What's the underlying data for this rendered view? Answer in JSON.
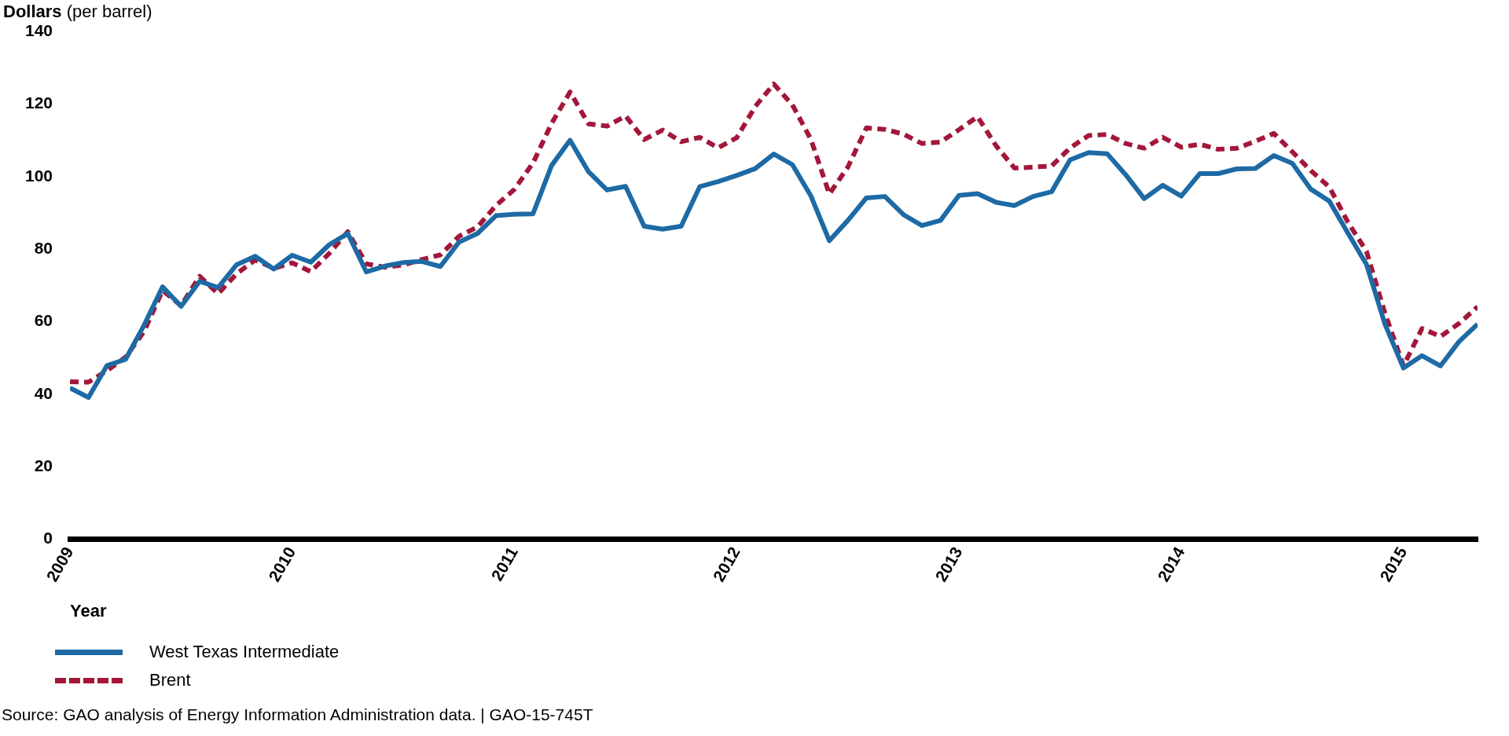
{
  "chart_data": {
    "type": "line",
    "ylabel": "Dollars (per barrel)",
    "xlabel": "Year",
    "x": [
      "2009-01",
      "2009-02",
      "2009-03",
      "2009-04",
      "2009-05",
      "2009-06",
      "2009-07",
      "2009-08",
      "2009-09",
      "2009-10",
      "2009-11",
      "2009-12",
      "2010-01",
      "2010-02",
      "2010-03",
      "2010-04",
      "2010-05",
      "2010-06",
      "2010-07",
      "2010-08",
      "2010-09",
      "2010-10",
      "2010-11",
      "2010-12",
      "2011-01",
      "2011-02",
      "2011-03",
      "2011-04",
      "2011-05",
      "2011-06",
      "2011-07",
      "2011-08",
      "2011-09",
      "2011-10",
      "2011-11",
      "2011-12",
      "2012-01",
      "2012-02",
      "2012-03",
      "2012-04",
      "2012-05",
      "2012-06",
      "2012-07",
      "2012-08",
      "2012-09",
      "2012-10",
      "2012-11",
      "2012-12",
      "2013-01",
      "2013-02",
      "2013-03",
      "2013-04",
      "2013-05",
      "2013-06",
      "2013-07",
      "2013-08",
      "2013-09",
      "2013-10",
      "2013-11",
      "2013-12",
      "2014-01",
      "2014-02",
      "2014-03",
      "2014-04",
      "2014-05",
      "2014-06",
      "2014-07",
      "2014-08",
      "2014-09",
      "2014-10",
      "2014-11",
      "2014-12",
      "2015-01",
      "2015-02",
      "2015-03",
      "2015-04",
      "2015-05"
    ],
    "series": [
      {
        "name": "West Texas Intermediate",
        "color": "#1d6aa5",
        "line_style": "solid",
        "values": [
          41.7,
          39.1,
          47.9,
          49.6,
          59.0,
          69.6,
          64.2,
          71.1,
          69.4,
          75.7,
          78.0,
          74.5,
          78.3,
          76.4,
          81.2,
          84.3,
          73.7,
          75.3,
          76.3,
          76.6,
          75.2,
          81.9,
          84.3,
          89.2,
          89.6,
          89.7,
          103.0,
          110.0,
          101.3,
          96.3,
          97.3,
          86.3,
          85.5,
          86.3,
          97.2,
          98.6,
          100.3,
          102.2,
          106.2,
          103.3,
          94.7,
          82.3,
          87.9,
          94.1,
          94.5,
          89.5,
          86.5,
          87.9,
          94.8,
          95.3,
          92.9,
          92.0,
          94.5,
          95.8,
          104.6,
          106.6,
          106.3,
          100.5,
          93.9,
          97.6,
          94.6,
          100.8,
          100.8,
          102.1,
          102.2,
          105.8,
          103.6,
          96.5,
          93.2,
          84.4,
          75.8,
          59.3,
          47.2,
          50.6,
          47.8,
          54.5,
          59.3
        ]
      },
      {
        "name": "Brent",
        "color": "#a3173a",
        "line_style": "dashed",
        "values": [
          43.4,
          43.3,
          46.5,
          50.2,
          57.3,
          68.6,
          64.4,
          72.5,
          67.7,
          73.2,
          77.0,
          74.7,
          76.2,
          73.8,
          78.8,
          84.8,
          75.9,
          75.0,
          75.6,
          77.1,
          78.4,
          83.5,
          86.1,
          92.0,
          96.5,
          103.7,
          114.6,
          123.3,
          114.5,
          113.9,
          116.7,
          110.2,
          112.8,
          109.6,
          110.8,
          107.9,
          110.7,
          119.3,
          125.5,
          119.8,
          110.3,
          95.2,
          102.6,
          113.4,
          113.0,
          111.7,
          109.1,
          109.5,
          112.9,
          116.5,
          108.5,
          102.3,
          102.6,
          102.9,
          107.9,
          111.3,
          111.6,
          109.1,
          107.8,
          110.8,
          108.1,
          108.9,
          107.5,
          107.8,
          109.7,
          111.9,
          106.8,
          101.6,
          97.1,
          87.4,
          79.4,
          62.3,
          47.8,
          58.1,
          55.9,
          59.5,
          64.1
        ]
      }
    ],
    "xlim": [
      "2009-01",
      "2015-05"
    ],
    "xticks": [
      "2009",
      "2010",
      "2011",
      "2012",
      "2013",
      "2014",
      "2015"
    ],
    "ylim": [
      0,
      140
    ],
    "yticks": [
      0,
      20,
      40,
      60,
      80,
      100,
      120,
      140
    ],
    "grid": false,
    "legend": "bottom left",
    "marker": "none",
    "annotations": [
      "Source: GAO analysis of Energy Information Administration data.  | GAO-15-745T"
    ]
  }
}
